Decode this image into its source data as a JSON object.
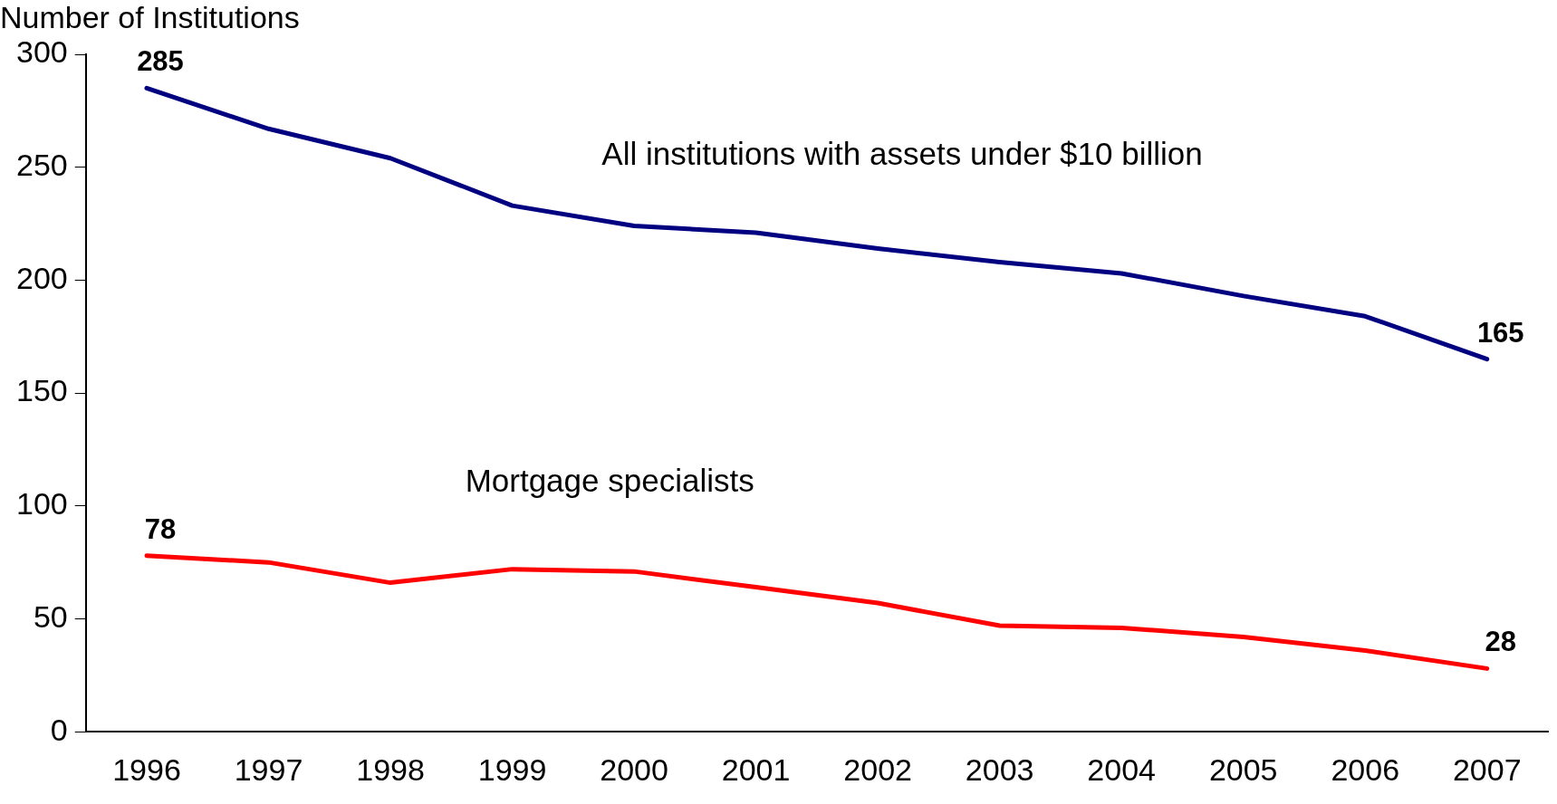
{
  "chart_data": {
    "type": "line",
    "ylabel": "Number of Institutions",
    "categories": [
      "1996",
      "1997",
      "1998",
      "1999",
      "2000",
      "2001",
      "2002",
      "2003",
      "2004",
      "2005",
      "2006",
      "2007"
    ],
    "series": [
      {
        "name": "All institutions with assets under $10 billion",
        "color": "#000080",
        "values": [
          285,
          267,
          254,
          233,
          224,
          221,
          214,
          208,
          203,
          193,
          184,
          165
        ],
        "value_labels": [
          "285",
          null,
          null,
          null,
          null,
          null,
          null,
          null,
          null,
          null,
          null,
          "165"
        ]
      },
      {
        "name": "Mortgage specialists",
        "color": "#ff0000",
        "values": [
          78,
          75,
          66,
          72,
          71,
          64,
          57,
          47,
          46,
          42,
          36,
          28
        ],
        "value_labels": [
          "78",
          null,
          null,
          null,
          null,
          null,
          null,
          null,
          null,
          null,
          null,
          "28"
        ]
      }
    ],
    "ylim": [
      0,
      300
    ],
    "yticks": [
      0,
      50,
      100,
      150,
      200,
      250,
      300
    ],
    "grid": false,
    "legend": false,
    "marker": "none",
    "line_style": "solid"
  }
}
